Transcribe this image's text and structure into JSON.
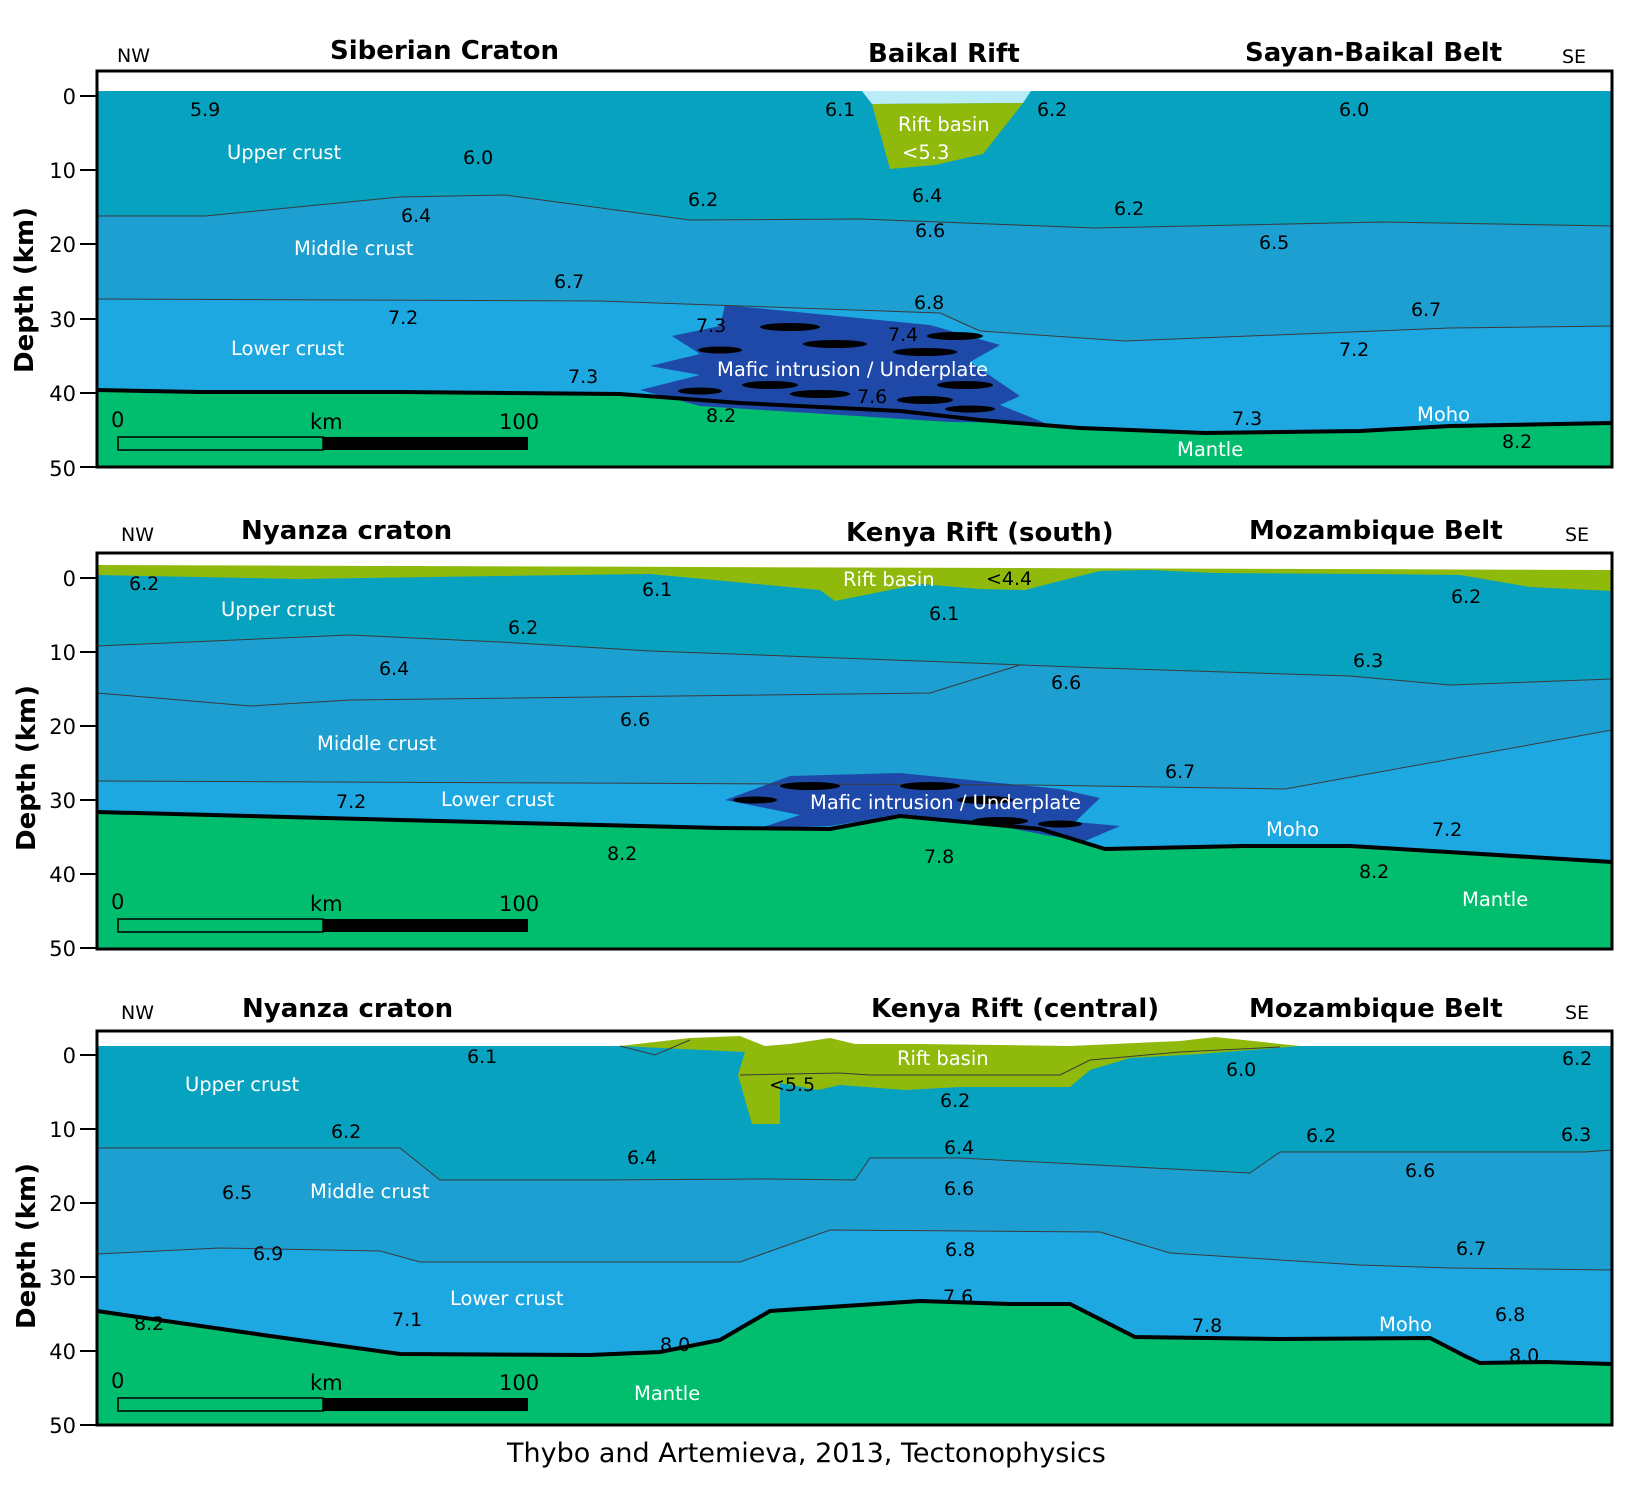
{
  "colors": {
    "upper_crust": "#06a2c0",
    "middle_crust": "#1d9fd2",
    "lower_crust": "#1ea8e2",
    "mantle": "#00be6e",
    "rift_basin": "#8fba0c",
    "water": "#b9ecf7",
    "mafic": "#1e49a8",
    "moho_line": "#000000"
  },
  "citation": "Thybo and Artemieva, 2013, Tectonophysics",
  "axis": {
    "ylabel": "Depth (km)",
    "ticks": [
      "0",
      "10",
      "20",
      "30",
      "40",
      "50"
    ],
    "scale_bar": {
      "start": "0",
      "unit": "km",
      "end": "100"
    }
  },
  "panels": [
    {
      "nw": "NW",
      "se": "SE",
      "title_left": "Siberian Craton",
      "title_center": "Baikal Rift",
      "title_right": "Sayan-Baikal Belt",
      "labels": {
        "upper_crust": "Upper crust",
        "middle_crust": "Middle crust",
        "lower_crust": "Lower crust",
        "mafic": "Mafic intrusion / Underplate",
        "rift_basin": "Rift basin",
        "basin_velocity": "<5.3",
        "moho": "Moho",
        "mantle": "Mantle"
      },
      "velocities": [
        "5.9",
        "6.0",
        "6.1",
        "6.2",
        "6.0",
        "6.4",
        "6.2",
        "6.4",
        "6.2",
        "6.6",
        "6.5",
        "6.7",
        "7.2",
        "7.3",
        "6.8",
        "7.4",
        "6.7",
        "7.2",
        "7.3",
        "7.6",
        "8.2",
        "7.3",
        "8.2"
      ]
    },
    {
      "nw": "NW",
      "se": "SE",
      "title_left": "Nyanza craton",
      "title_center": "Kenya Rift (south)",
      "title_right": "Mozambique Belt",
      "labels": {
        "upper_crust": "Upper crust",
        "middle_crust": "Middle crust",
        "lower_crust": "Lower crust",
        "mafic": "Mafic intrusion / Underplate",
        "rift_basin": "Rift basin",
        "basin_velocity": "<4.4",
        "moho": "Moho",
        "mantle": "Mantle"
      },
      "velocities": [
        "6.2",
        "6.1",
        "6.2",
        "6.2",
        "6.1",
        "6.4",
        "6.3",
        "6.6",
        "6.6",
        "6.7",
        "7.2",
        "7.2",
        "8.2",
        "7.8",
        "8.2"
      ]
    },
    {
      "nw": "NW",
      "se": "SE",
      "title_left": "Nyanza craton",
      "title_center": "Kenya Rift (central)",
      "title_right": "Mozambique Belt",
      "labels": {
        "upper_crust": "Upper crust",
        "middle_crust": "Middle crust",
        "lower_crust": "Lower crust",
        "rift_basin": "Rift basin",
        "basin_velocity": "<5.5",
        "moho": "Moho",
        "mantle": "Mantle"
      },
      "velocities": [
        "6.1",
        "6.0",
        "6.2",
        "6.2",
        "6.2",
        "6.3",
        "6.2",
        "6.4",
        "6.4",
        "6.6",
        "6.5",
        "6.6",
        "6.9",
        "6.8",
        "6.7",
        "7.1",
        "7.6",
        "7.8",
        "6.8",
        "8.2",
        "8.0",
        "8.0"
      ]
    }
  ]
}
